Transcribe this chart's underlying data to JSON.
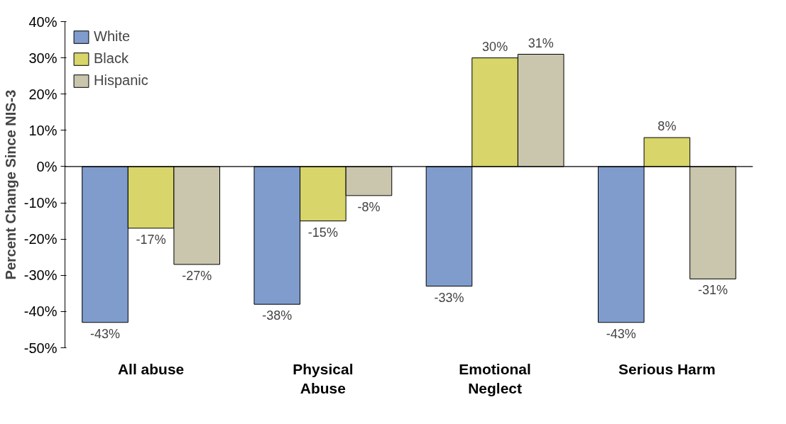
{
  "chart_data": {
    "type": "bar",
    "ylabel": "Percent Change Since NIS-3",
    "categories": [
      "All abuse",
      "Physical\nAbuse",
      "Emotional\nNeglect",
      "Serious Harm"
    ],
    "series": [
      {
        "name": "White",
        "color": "#7f9ccc",
        "values": [
          -43,
          -38,
          -33,
          -43
        ],
        "value_labels": [
          "-43%",
          "-38%",
          "-33%",
          "-43%"
        ]
      },
      {
        "name": "Black",
        "color": "#d8d56a",
        "values": [
          -17,
          -15,
          30,
          8
        ],
        "value_labels": [
          "-17%",
          "-15%",
          "30%",
          "8%"
        ]
      },
      {
        "name": "Hispanic",
        "color": "#c9c6ad",
        "values": [
          -27,
          -8,
          31,
          -31
        ],
        "value_labels": [
          "-27%",
          "-8%",
          "31%",
          "-31%"
        ]
      }
    ],
    "ylim": [
      -50,
      40
    ],
    "yticks": [
      {
        "value": -50,
        "label": "-50%"
      },
      {
        "value": -40,
        "label": "-40%"
      },
      {
        "value": -30,
        "label": "-30%"
      },
      {
        "value": -20,
        "label": "-20%"
      },
      {
        "value": -10,
        "label": "-10%"
      },
      {
        "value": 0,
        "label": "0%"
      },
      {
        "value": 10,
        "label": "10%"
      },
      {
        "value": 20,
        "label": "20%"
      },
      {
        "value": 30,
        "label": "30%"
      },
      {
        "value": 40,
        "label": "40%"
      }
    ],
    "legend": "top left"
  }
}
